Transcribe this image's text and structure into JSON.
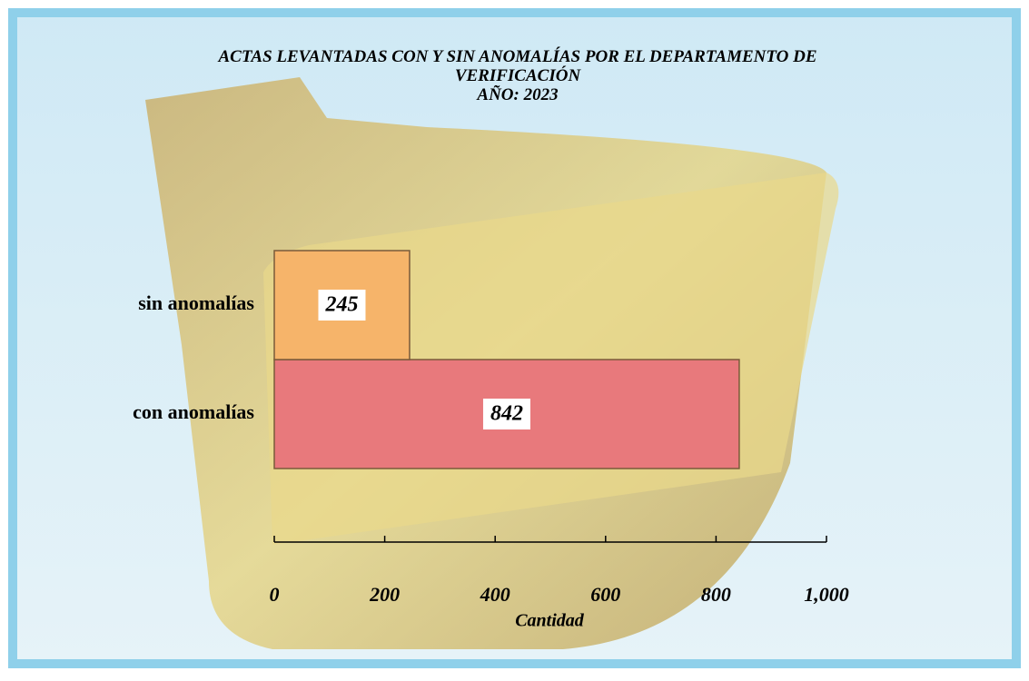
{
  "chart_data": {
    "type": "barh",
    "title": "ACTAS LEVANTADAS CON Y SIN ANOMALÍAS POR EL DEPARTAMENTO DE VERIFICACIÓN",
    "subtitle": "AÑO: 2023",
    "categories": [
      "con anomalías",
      "sin anomalías"
    ],
    "values": [
      842,
      245
    ],
    "colors": [
      "#e8797c",
      "#f6b46a"
    ],
    "xlabel": "Cantidad",
    "xlim": [
      0,
      1000
    ],
    "xticks": [
      0,
      200,
      400,
      600,
      800,
      {
        "value": 1000,
        "label": "1,000"
      }
    ],
    "grid": false
  }
}
